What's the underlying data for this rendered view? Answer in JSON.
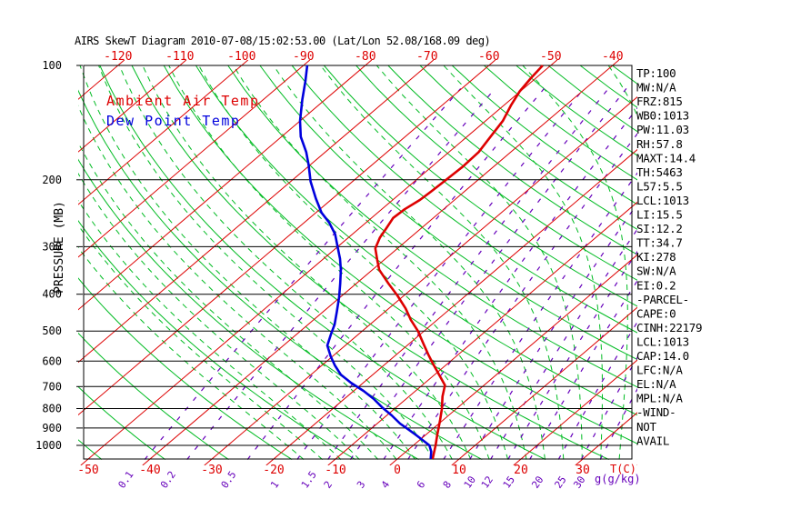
{
  "title": "AIRS SkewT Diagram 2010-07-08/15:02:53.00 (Lat/Lon 52.08/168.09 deg)",
  "legend": {
    "ambient": "Ambient Air Temp",
    "dewpoint": "Dew Point Temp"
  },
  "axes": {
    "pressure_axis_label": "PRESSURE (MB)",
    "pressure_ticks": [
      100,
      200,
      300,
      400,
      500,
      600,
      700,
      800,
      900,
      1000
    ],
    "top_temperature_labels": [
      -120,
      -110,
      -100,
      -90,
      -80,
      -70,
      -60,
      -50,
      -40
    ],
    "bottom_temperature_labels": [
      -50,
      -40,
      -30,
      -20,
      -10,
      0,
      10,
      20,
      30
    ],
    "temperature_unit_label": "T(C)",
    "mixing_ratio_labels": [
      0.1,
      0.2,
      0.5,
      1,
      1.5,
      2,
      3,
      4,
      6,
      8,
      10,
      12,
      15,
      20,
      25,
      30
    ],
    "mixing_ratio_unit_label": "g(g/kg)"
  },
  "stats_panel": {
    "lines": [
      "TP:100",
      "MW:N/A",
      "FRZ:815",
      "WB0:1013",
      "PW:11.03",
      "RH:57.8",
      "MAXT:14.4",
      "TH:5463",
      "L57:5.5",
      "LCL:1013",
      "LI:15.5",
      "SI:12.2",
      "TT:34.7",
      "KI:278",
      "SW:N/A",
      "EI:0.2",
      "-PARCEL-",
      "CAPE:0",
      "CINH:22179",
      "LCL:1013",
      "CAP:14.0",
      "LFC:N/A",
      "EL:N/A",
      "MPL:N/A",
      "-WIND-",
      "NOT",
      "AVAIL"
    ]
  },
  "colors": {
    "isotherm": "#dd0000",
    "dry_adiabat": "#00bb22",
    "moist_adiabat": "#00bb22",
    "mixing_ratio": "#6600bb",
    "temperature_curve": "#dd0000",
    "dewpoint_curve": "#0000dd",
    "grid": "#000000",
    "label_red": "#dd0000",
    "label_purple": "#6600bb"
  },
  "chart_data": {
    "type": "line",
    "title": "AIRS SkewT Diagram 2010-07-08/15:02:53.00 (Lat/Lon 52.08/168.09 deg)",
    "xlabel": "Temperature (C) on skewed axis",
    "ylabel": "PRESSURE (MB)",
    "y_scale": "log-inverted",
    "pressure_range_mb": [
      100,
      1086
    ],
    "grid": "pressure lines every 100 mb",
    "legend_position": "top-left inside plot",
    "background_families": {
      "isotherms_c": {
        "from": -130,
        "to": 40,
        "step": 10,
        "style": "solid red"
      },
      "dry_adiabats_theta_k": {
        "from": 210,
        "to": 460,
        "step": 10,
        "style": "solid green"
      },
      "moist_adiabats_surface_t_c": {
        "from": -15,
        "to": 39,
        "step": 3,
        "style": "dashed green"
      },
      "mixing_ratio_g_kg": [
        0.1,
        0.2,
        0.5,
        1,
        1.5,
        2,
        3,
        4,
        6,
        8,
        10,
        12,
        15,
        20,
        25,
        30
      ]
    },
    "series": [
      {
        "name": "Ambient Air Temp",
        "points_p_t": [
          [
            100,
            -51.3
          ],
          [
            108,
            -50.8
          ],
          [
            117,
            -50.1
          ],
          [
            127,
            -48.9
          ],
          [
            140,
            -47.2
          ],
          [
            154,
            -46.2
          ],
          [
            169,
            -45.2
          ],
          [
            185,
            -45.0
          ],
          [
            202,
            -45.2
          ],
          [
            215,
            -45.4
          ],
          [
            226,
            -45.6
          ],
          [
            239,
            -46.3
          ],
          [
            252,
            -46.5
          ],
          [
            269,
            -45.6
          ],
          [
            284,
            -44.9
          ],
          [
            303,
            -43.6
          ],
          [
            325,
            -41.1
          ],
          [
            345,
            -38.9
          ],
          [
            375,
            -34.8
          ],
          [
            403,
            -31.1
          ],
          [
            436,
            -27.3
          ],
          [
            468,
            -24.2
          ],
          [
            500,
            -21.0
          ],
          [
            540,
            -17.7
          ],
          [
            576,
            -14.9
          ],
          [
            609,
            -12.4
          ],
          [
            654,
            -9.1
          ],
          [
            695,
            -6.3
          ],
          [
            743,
            -4.6
          ],
          [
            802,
            -2.3
          ],
          [
            857,
            -0.5
          ],
          [
            936,
            1.8
          ],
          [
            1000,
            3.6
          ],
          [
            1086,
            5.7
          ]
        ]
      },
      {
        "name": "Dew Point Temp",
        "points_p_t": [
          [
            100,
            -89.4
          ],
          [
            110,
            -86.7
          ],
          [
            123,
            -83.7
          ],
          [
            140,
            -80.0
          ],
          [
            154,
            -76.9
          ],
          [
            169,
            -73.1
          ],
          [
            183,
            -70.2
          ],
          [
            202,
            -66.8
          ],
          [
            224,
            -62.7
          ],
          [
            244,
            -59.1
          ],
          [
            259,
            -56.0
          ],
          [
            278,
            -52.8
          ],
          [
            301,
            -49.9
          ],
          [
            323,
            -47.3
          ],
          [
            345,
            -45.1
          ],
          [
            375,
            -42.6
          ],
          [
            407,
            -40.2
          ],
          [
            443,
            -37.9
          ],
          [
            481,
            -35.7
          ],
          [
            511,
            -34.4
          ],
          [
            546,
            -32.9
          ],
          [
            583,
            -30.3
          ],
          [
            616,
            -27.9
          ],
          [
            651,
            -25.2
          ],
          [
            684,
            -22.0
          ],
          [
            719,
            -18.4
          ],
          [
            755,
            -15.2
          ],
          [
            794,
            -12.3
          ],
          [
            834,
            -9.2
          ],
          [
            876,
            -6.3
          ],
          [
            911,
            -3.6
          ],
          [
            941,
            -1.4
          ],
          [
            973,
            0.8
          ],
          [
            1000,
            2.6
          ],
          [
            1039,
            4.1
          ],
          [
            1086,
            5.4
          ]
        ]
      }
    ]
  }
}
